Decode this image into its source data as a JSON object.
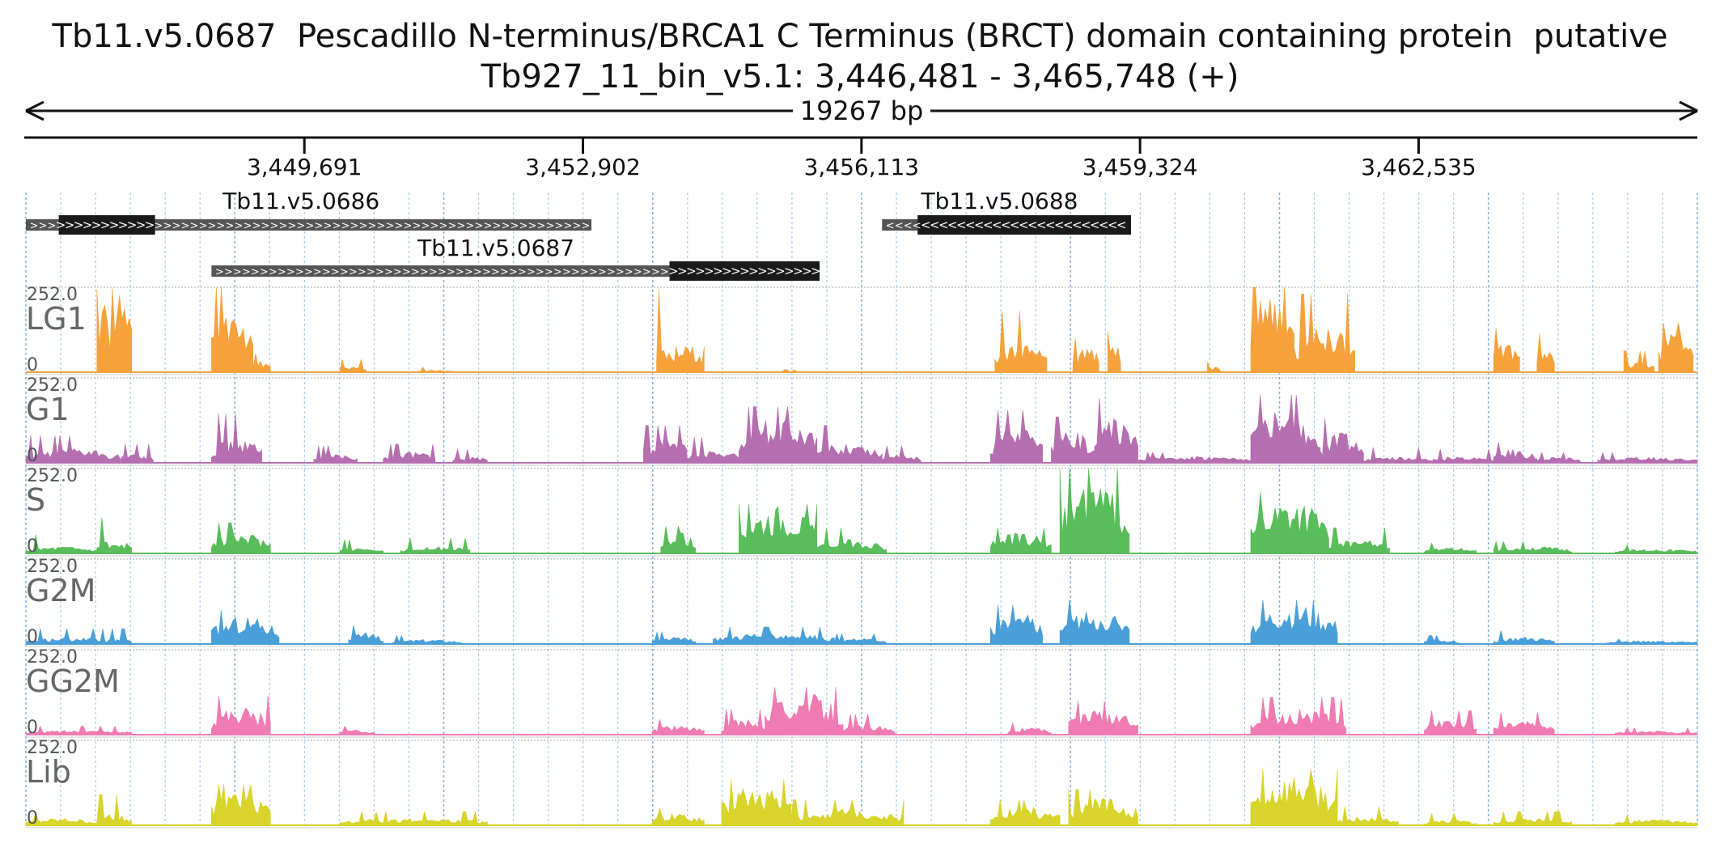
{
  "header": {
    "title": "Tb11.v5.0687  Pescadillo N-terminus/BRCA1 C Terminus (BRCT) domain containing protein  putative",
    "region": "Tb927_11_bin_v5.1: 3,446,481 - 3,465,748 (+)",
    "span_label": "19267 bp"
  },
  "region": {
    "chrom": "Tb927_11_bin_v5.1",
    "start": 3446481,
    "end": 3465748,
    "strand": "+"
  },
  "ruler": {
    "ticks": [
      "3,449,691",
      "3,452,902",
      "3,456,113",
      "3,459,324",
      "3,462,535"
    ]
  },
  "genes": [
    {
      "name": "Tb11.v5.0686",
      "strand": "+",
      "start": 3446481,
      "end": 3453000,
      "cds_start": 3446860,
      "cds_end": 3447970
    },
    {
      "name": "Tb11.v5.0687",
      "strand": "+",
      "start": 3448620,
      "end": 3455630,
      "cds_start": 3453900,
      "cds_end": 3455630
    },
    {
      "name": "Tb11.v5.0688",
      "strand": "-",
      "start": 3456350,
      "end": 3459220,
      "cds_start": 3456760,
      "cds_end": 3459220
    }
  ],
  "colors": {
    "LG1": "#f5a23d",
    "G1": "#b56fb0",
    "S": "#58bd5a",
    "G2M": "#4a9fd8",
    "GG2M": "#f07bb2",
    "Lib": "#d8d42c",
    "gene_utr": "#555555",
    "gene_cds": "#1a1a1a",
    "grid": "#7aaedc"
  },
  "chart_data": {
    "type": "area",
    "x_unit": "bp",
    "ylim": [
      0,
      252.0
    ],
    "y_labels": [
      "252.0",
      "0"
    ],
    "series": [
      {
        "name": "LG1",
        "peaks": [
          [
            3447300,
            3447450,
            0.98,
            0.6
          ],
          [
            3447450,
            3447700,
            0.99,
            0.7
          ],
          [
            3448620,
            3449100,
            1.0,
            0.6
          ],
          [
            3449100,
            3449300,
            0.22,
            0.1
          ],
          [
            3450100,
            3450400,
            0.15,
            0.05
          ],
          [
            3451000,
            3451400,
            0.06,
            0.02
          ],
          [
            3453750,
            3453950,
            0.98,
            0.2
          ],
          [
            3453950,
            3454300,
            0.3,
            0.25
          ],
          [
            3455200,
            3455500,
            0.03,
            0.01
          ],
          [
            3457650,
            3458250,
            0.72,
            0.28
          ],
          [
            3458550,
            3458850,
            0.4,
            0.25
          ],
          [
            3458950,
            3459100,
            0.48,
            0.3
          ],
          [
            3460100,
            3460250,
            0.12,
            0.05
          ],
          [
            3460600,
            3461100,
            1.0,
            0.75
          ],
          [
            3461100,
            3461800,
            0.92,
            0.4
          ],
          [
            3463400,
            3463700,
            0.52,
            0.3
          ],
          [
            3463900,
            3464100,
            0.45,
            0.25
          ],
          [
            3464900,
            3465250,
            0.25,
            0.1
          ],
          [
            3465300,
            3465700,
            0.58,
            0.4
          ]
        ]
      },
      {
        "name": "G1",
        "peaks": [
          [
            3446481,
            3447600,
            0.32,
            0.12
          ],
          [
            3447600,
            3447950,
            0.22,
            0.08
          ],
          [
            3448620,
            3449200,
            0.58,
            0.22
          ],
          [
            3449800,
            3450300,
            0.2,
            0.07
          ],
          [
            3450600,
            3451200,
            0.22,
            0.1
          ],
          [
            3451400,
            3451800,
            0.16,
            0.06
          ],
          [
            3453600,
            3454100,
            0.44,
            0.24
          ],
          [
            3454100,
            3454700,
            0.3,
            0.12
          ],
          [
            3454700,
            3455600,
            0.66,
            0.42
          ],
          [
            3455600,
            3456350,
            0.44,
            0.18
          ],
          [
            3456350,
            3456800,
            0.2,
            0.07
          ],
          [
            3457600,
            3458200,
            0.62,
            0.32
          ],
          [
            3458300,
            3458800,
            0.54,
            0.28
          ],
          [
            3458800,
            3459300,
            0.76,
            0.38
          ],
          [
            3459300,
            3460600,
            0.12,
            0.06
          ],
          [
            3460600,
            3461400,
            0.8,
            0.46
          ],
          [
            3461400,
            3461900,
            0.52,
            0.26
          ],
          [
            3461900,
            3462700,
            0.18,
            0.05
          ],
          [
            3462700,
            3463400,
            0.16,
            0.06
          ],
          [
            3463400,
            3463900,
            0.24,
            0.12
          ],
          [
            3463900,
            3464400,
            0.12,
            0.05
          ],
          [
            3464600,
            3465748,
            0.12,
            0.05
          ]
        ]
      },
      {
        "name": "S",
        "peaks": [
          [
            3446481,
            3447300,
            0.22,
            0.06
          ],
          [
            3447300,
            3447700,
            0.42,
            0.12
          ],
          [
            3448620,
            3449300,
            0.36,
            0.18
          ],
          [
            3450100,
            3450600,
            0.16,
            0.05
          ],
          [
            3450800,
            3451600,
            0.18,
            0.06
          ],
          [
            3453800,
            3454200,
            0.32,
            0.18
          ],
          [
            3454700,
            3455600,
            0.58,
            0.4
          ],
          [
            3455600,
            3456400,
            0.3,
            0.12
          ],
          [
            3457600,
            3458300,
            0.3,
            0.18
          ],
          [
            3458400,
            3459200,
            1.0,
            0.62
          ],
          [
            3460600,
            3461500,
            0.72,
            0.48
          ],
          [
            3461500,
            3462200,
            0.3,
            0.12
          ],
          [
            3462600,
            3463200,
            0.12,
            0.05
          ],
          [
            3463400,
            3464300,
            0.14,
            0.06
          ],
          [
            3464800,
            3465748,
            0.1,
            0.04
          ]
        ]
      },
      {
        "name": "G2M",
        "peaks": [
          [
            3446481,
            3447700,
            0.18,
            0.06
          ],
          [
            3448620,
            3449400,
            0.4,
            0.24
          ],
          [
            3450200,
            3450600,
            0.22,
            0.1
          ],
          [
            3450700,
            3451500,
            0.1,
            0.04
          ],
          [
            3453700,
            3454200,
            0.14,
            0.06
          ],
          [
            3454400,
            3455800,
            0.2,
            0.1
          ],
          [
            3455800,
            3456400,
            0.12,
            0.05
          ],
          [
            3457600,
            3458200,
            0.46,
            0.28
          ],
          [
            3458400,
            3459200,
            0.52,
            0.3
          ],
          [
            3460600,
            3461600,
            0.52,
            0.34
          ],
          [
            3462600,
            3463000,
            0.1,
            0.04
          ],
          [
            3463400,
            3464100,
            0.16,
            0.06
          ],
          [
            3464700,
            3465748,
            0.06,
            0.03
          ]
        ]
      },
      {
        "name": "GG2M",
        "peaks": [
          [
            3446481,
            3447700,
            0.1,
            0.04
          ],
          [
            3448620,
            3449300,
            0.46,
            0.24
          ],
          [
            3450100,
            3450500,
            0.1,
            0.04
          ],
          [
            3453700,
            3454300,
            0.18,
            0.08
          ],
          [
            3454500,
            3455000,
            0.3,
            0.14
          ],
          [
            3455000,
            3455900,
            0.56,
            0.36
          ],
          [
            3455900,
            3456500,
            0.24,
            0.1
          ],
          [
            3457800,
            3458300,
            0.14,
            0.06
          ],
          [
            3458500,
            3459300,
            0.4,
            0.22
          ],
          [
            3460600,
            3461700,
            0.44,
            0.22
          ],
          [
            3462600,
            3463200,
            0.28,
            0.14
          ],
          [
            3463400,
            3464100,
            0.26,
            0.12
          ],
          [
            3464800,
            3465748,
            0.08,
            0.03
          ]
        ]
      },
      {
        "name": "Lib",
        "peaks": [
          [
            3446481,
            3447300,
            0.16,
            0.06
          ],
          [
            3447300,
            3447700,
            0.36,
            0.1
          ],
          [
            3448620,
            3449300,
            0.48,
            0.3
          ],
          [
            3450100,
            3451800,
            0.16,
            0.06
          ],
          [
            3453700,
            3454300,
            0.2,
            0.1
          ],
          [
            3454500,
            3455300,
            0.54,
            0.36
          ],
          [
            3455300,
            3456600,
            0.3,
            0.14
          ],
          [
            3457600,
            3458400,
            0.3,
            0.16
          ],
          [
            3458500,
            3459300,
            0.42,
            0.24
          ],
          [
            3460600,
            3461600,
            0.66,
            0.44
          ],
          [
            3461600,
            3462300,
            0.22,
            0.08
          ],
          [
            3462600,
            3463200,
            0.14,
            0.05
          ],
          [
            3463400,
            3464300,
            0.16,
            0.06
          ],
          [
            3464800,
            3465748,
            0.12,
            0.05
          ]
        ]
      }
    ]
  }
}
